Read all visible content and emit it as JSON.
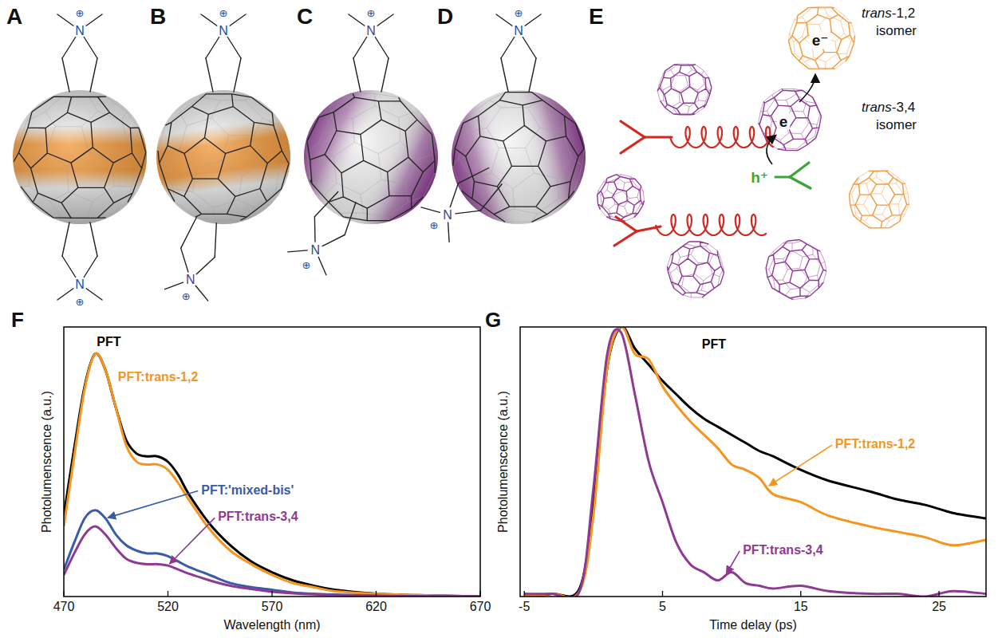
{
  "figure": {
    "molecules": [
      {
        "label": "A",
        "color": "#f39a3c"
      },
      {
        "label": "B",
        "color": "#f39a3c"
      },
      {
        "label": "C",
        "color": "#8e3a93"
      },
      {
        "label": "D",
        "color": "#8e3a93"
      }
    ],
    "cation": {
      "atom": "N",
      "charge": "⊕"
    },
    "scheme": {
      "label": "E",
      "isomers": [
        {
          "name": "trans-1,2",
          "suffix": "isomer",
          "color": "#f39a3c",
          "carrier": "e⁻"
        },
        {
          "name": "trans-3,4",
          "suffix": "isomer",
          "color": "#8e3a93",
          "carrier": "e"
        }
      ],
      "hole": "h⁺"
    }
  },
  "chart_data": [
    {
      "type": "line",
      "title": "F",
      "x_label": "Wavelength (nm)",
      "y_label": "Photolumenscence (a.u.)",
      "x": [
        470,
        475,
        480,
        485,
        490,
        495,
        500,
        505,
        510,
        515,
        520,
        525,
        530,
        540,
        550,
        560,
        570,
        580,
        590,
        600,
        620,
        640,
        670
      ],
      "xlim": [
        470,
        670
      ],
      "xticks": [
        470,
        520,
        570,
        620,
        670
      ],
      "ylim": [
        0,
        1
      ],
      "yticks": [],
      "tick_labels": "x",
      "series": [
        {
          "name": "PFT",
          "color": "#000000",
          "values": [
            0.3,
            0.55,
            0.78,
            0.9,
            0.84,
            0.7,
            0.58,
            0.53,
            0.52,
            0.52,
            0.5,
            0.45,
            0.38,
            0.27,
            0.19,
            0.13,
            0.09,
            0.06,
            0.04,
            0.025,
            0.01,
            0.005,
            0
          ]
        },
        {
          "name": "PFT:trans-1,2",
          "color": "#f7941d",
          "values": [
            0.26,
            0.52,
            0.77,
            0.9,
            0.84,
            0.7,
            0.56,
            0.5,
            0.49,
            0.49,
            0.47,
            0.42,
            0.36,
            0.25,
            0.17,
            0.12,
            0.08,
            0.05,
            0.035,
            0.02,
            0.01,
            0.005,
            0
          ]
        },
        {
          "name": "PFT:'mixed-bis'",
          "color": "#3a5ba8",
          "values": [
            0.1,
            0.2,
            0.29,
            0.32,
            0.29,
            0.23,
            0.19,
            0.17,
            0.16,
            0.16,
            0.15,
            0.13,
            0.11,
            0.08,
            0.05,
            0.035,
            0.025,
            0.015,
            0.01,
            0.007,
            0.003,
            0.001,
            0
          ]
        },
        {
          "name": "PFT:trans-3,4",
          "color": "#8e3a93",
          "values": [
            0.08,
            0.16,
            0.23,
            0.26,
            0.23,
            0.18,
            0.14,
            0.125,
            0.12,
            0.12,
            0.115,
            0.1,
            0.085,
            0.06,
            0.04,
            0.028,
            0.018,
            0.012,
            0.008,
            0.005,
            0.002,
            0.001,
            0
          ]
        }
      ]
    },
    {
      "type": "line",
      "title": "G",
      "x_label": "Time delay (ps)",
      "y_label": "Photolumenscence (a.u.)",
      "x": [
        -5,
        -3,
        -1,
        0,
        1,
        2,
        3,
        4,
        5,
        6,
        7,
        8,
        9,
        10,
        11,
        12,
        13,
        15,
        17,
        20,
        22,
        24,
        26,
        28.4
      ],
      "xlim": [
        -5.3,
        28.4
      ],
      "xticks": [
        -5,
        5,
        15,
        25
      ],
      "ylim": [
        0,
        1
      ],
      "yticks": [],
      "tick_labels": "x",
      "series": [
        {
          "name": "PFT",
          "color": "#000000",
          "values": [
            0,
            0.01,
            0.03,
            0.35,
            0.85,
            1.0,
            0.92,
            0.86,
            0.8,
            0.75,
            0.7,
            0.66,
            0.63,
            0.6,
            0.57,
            0.54,
            0.52,
            0.47,
            0.43,
            0.39,
            0.36,
            0.34,
            0.31,
            0.29
          ]
        },
        {
          "name": "PFT:trans-1,2",
          "color": "#f7941d",
          "values": [
            0,
            0.01,
            0.02,
            0.3,
            0.85,
            1.0,
            0.9,
            0.88,
            0.78,
            0.71,
            0.65,
            0.6,
            0.55,
            0.49,
            0.47,
            0.44,
            0.38,
            0.35,
            0.3,
            0.26,
            0.24,
            0.22,
            0.19,
            0.21
          ]
        },
        {
          "name": "PFT:trans-3,4",
          "color": "#8e3a93",
          "values": [
            0.01,
            0.01,
            0.02,
            0.4,
            0.9,
            0.98,
            0.75,
            0.5,
            0.35,
            0.2,
            0.12,
            0.09,
            0.06,
            0.09,
            0.05,
            0.04,
            0.03,
            0.04,
            0.02,
            0.01,
            0.01,
            0.0,
            0.02,
            0.01
          ]
        }
      ]
    }
  ]
}
